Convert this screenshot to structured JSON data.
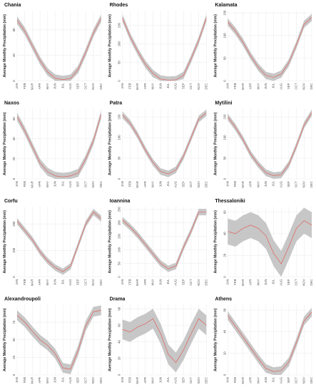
{
  "chart_data": [
    {
      "type": "line",
      "title": "Chania",
      "y_label": "Average Monthly Precipitation (mm)",
      "categories": [
        "JAN",
        "FEB",
        "MAR",
        "APR",
        "MAY",
        "JUN",
        "JUL",
        "AUG",
        "SEP",
        "OCT",
        "NOV",
        "DEC"
      ],
      "values": [
        95,
        78,
        55,
        32,
        14,
        4,
        2,
        4,
        18,
        45,
        75,
        98
      ],
      "lower": [
        89,
        72,
        49,
        26,
        8,
        0,
        0,
        0,
        12,
        39,
        69,
        92
      ],
      "upper": [
        101,
        84,
        61,
        38,
        20,
        10,
        8,
        10,
        24,
        51,
        81,
        104
      ],
      "color": "#e0605a",
      "band_color": "#bdbdbd",
      "ylim": [
        0,
        110
      ],
      "yticks": [
        0,
        40,
        80
      ],
      "grid": true
    },
    {
      "type": "line",
      "title": "Rhodes",
      "y_label": "Average Monthly Precipitation (mm)",
      "categories": [
        "JAN",
        "FEB",
        "MAR",
        "APR",
        "MAY",
        "JUN",
        "JUL",
        "AUG",
        "SEP",
        "OCT",
        "NOV",
        "DEC"
      ],
      "values": [
        170,
        120,
        80,
        45,
        20,
        5,
        2,
        3,
        15,
        60,
        110,
        170
      ],
      "lower": [
        160,
        110,
        70,
        35,
        10,
        0,
        0,
        0,
        5,
        50,
        100,
        160
      ],
      "upper": [
        180,
        130,
        90,
        55,
        30,
        15,
        12,
        13,
        25,
        70,
        120,
        180
      ],
      "color": "#e0605a",
      "band_color": "#bdbdbd",
      "ylim": [
        0,
        190
      ],
      "yticks": [
        0,
        50,
        100,
        150
      ],
      "grid": true
    },
    {
      "type": "line",
      "title": "Kalamata",
      "y_label": "Average Monthly Precipitation (mm)",
      "categories": [
        "JAN",
        "FEB",
        "MAR",
        "APR",
        "MAY",
        "JUN",
        "JUL",
        "AUG",
        "SEP",
        "OCT",
        "NOV",
        "DEC"
      ],
      "values": [
        130,
        110,
        85,
        55,
        30,
        12,
        8,
        15,
        40,
        80,
        125,
        140
      ],
      "lower": [
        122,
        102,
        77,
        47,
        22,
        4,
        0,
        7,
        32,
        72,
        117,
        132
      ],
      "upper": [
        138,
        118,
        93,
        63,
        38,
        20,
        16,
        23,
        48,
        88,
        133,
        148
      ],
      "color": "#e0605a",
      "band_color": "#bdbdbd",
      "ylim": [
        0,
        155
      ],
      "yticks": [
        0,
        50,
        100,
        150
      ],
      "grid": true
    },
    {
      "type": "line",
      "title": "Naxos",
      "y_label": "Average Monthly Precipitation (mm)",
      "categories": [
        "JAN",
        "FEB",
        "MAR",
        "APR",
        "MAY",
        "JUN",
        "JUL",
        "AUG",
        "SEP",
        "OCT",
        "NOV",
        "DEC"
      ],
      "values": [
        62,
        48,
        32,
        16,
        7,
        3,
        2,
        3,
        6,
        20,
        38,
        64
      ],
      "lower": [
        58,
        44,
        28,
        12,
        3,
        0,
        0,
        0,
        2,
        16,
        34,
        60
      ],
      "upper": [
        66,
        52,
        36,
        20,
        11,
        7,
        6,
        7,
        10,
        24,
        42,
        68
      ],
      "color": "#e0605a",
      "band_color": "#bdbdbd",
      "ylim": [
        0,
        70
      ],
      "yticks": [
        0,
        20,
        40,
        60
      ],
      "grid": true
    },
    {
      "type": "line",
      "title": "Patra",
      "y_label": "Average Monthly Precipitation (mm)",
      "categories": [
        "JAN",
        "FEB",
        "MAR",
        "APR",
        "MAY",
        "JUN",
        "JUL",
        "AUG",
        "SEP",
        "OCT",
        "NOV",
        "DEC"
      ],
      "values": [
        155,
        135,
        105,
        70,
        40,
        18,
        12,
        22,
        55,
        100,
        145,
        160
      ],
      "lower": [
        147,
        127,
        97,
        62,
        32,
        10,
        4,
        14,
        47,
        92,
        137,
        152
      ],
      "upper": [
        163,
        143,
        113,
        78,
        48,
        26,
        20,
        30,
        63,
        108,
        153,
        168
      ],
      "color": "#e0605a",
      "band_color": "#bdbdbd",
      "ylim": [
        0,
        170
      ],
      "yticks": [
        0,
        50,
        100,
        150
      ],
      "grid": true
    },
    {
      "type": "line",
      "title": "Mytilini",
      "y_label": "Average Monthly Precipitation (mm)",
      "categories": [
        "JAN",
        "FEB",
        "MAR",
        "APR",
        "MAY",
        "JUN",
        "JUL",
        "AUG",
        "SEP",
        "OCT",
        "NOV",
        "DEC"
      ],
      "values": [
        150,
        125,
        95,
        60,
        35,
        15,
        8,
        10,
        35,
        80,
        130,
        160
      ],
      "lower": [
        142,
        117,
        87,
        52,
        27,
        7,
        0,
        2,
        27,
        72,
        122,
        152
      ],
      "upper": [
        158,
        133,
        103,
        68,
        43,
        23,
        16,
        18,
        43,
        88,
        138,
        168
      ],
      "color": "#e0605a",
      "band_color": "#bdbdbd",
      "ylim": [
        0,
        170
      ],
      "yticks": [
        0,
        50,
        100,
        150
      ],
      "grid": true
    },
    {
      "type": "line",
      "title": "Corfu",
      "y_label": "Average Monthly Precipitation (mm)",
      "categories": [
        "JAN",
        "FEB",
        "MAR",
        "APR",
        "MAY",
        "JUN",
        "JUL",
        "AUG",
        "SEP",
        "OCT",
        "NOV",
        "DEC"
      ],
      "values": [
        210,
        175,
        140,
        95,
        60,
        35,
        20,
        40,
        120,
        200,
        245,
        220
      ],
      "lower": [
        198,
        163,
        128,
        83,
        48,
        23,
        8,
        28,
        108,
        188,
        233,
        208
      ],
      "upper": [
        222,
        187,
        152,
        107,
        72,
        47,
        32,
        52,
        132,
        212,
        257,
        232
      ],
      "color": "#e0605a",
      "band_color": "#bdbdbd",
      "ylim": [
        0,
        265
      ],
      "yticks": [
        0,
        100,
        200
      ],
      "grid": true
    },
    {
      "type": "line",
      "title": "Ioannina",
      "y_label": "Average Monthly Precipitation (mm)",
      "categories": [
        "JAN",
        "FEB",
        "MAR",
        "APR",
        "MAY",
        "JUN",
        "JUL",
        "AUG",
        "SEP",
        "OCT",
        "NOV",
        "DEC"
      ],
      "values": [
        210,
        185,
        155,
        120,
        85,
        50,
        30,
        40,
        110,
        170,
        240,
        240
      ],
      "lower": [
        198,
        173,
        143,
        108,
        73,
        38,
        18,
        28,
        98,
        158,
        228,
        228
      ],
      "upper": [
        222,
        197,
        167,
        132,
        97,
        62,
        42,
        52,
        122,
        182,
        252,
        252
      ],
      "color": "#e0605a",
      "band_color": "#bdbdbd",
      "ylim": [
        0,
        260
      ],
      "yticks": [
        0,
        50,
        100,
        150,
        200,
        250
      ],
      "grid": true
    },
    {
      "type": "line",
      "title": "Thessaloniki",
      "y_label": "Average Monthly Precipitation (mm)",
      "categories": [
        "JAN",
        "FEB",
        "MAR",
        "APR",
        "MAY",
        "JUN",
        "JUL",
        "AUG",
        "SEP",
        "OCT",
        "NOV",
        "DEC"
      ],
      "values": [
        42,
        40,
        45,
        48,
        45,
        38,
        22,
        12,
        28,
        45,
        52,
        48
      ],
      "lower": [
        30,
        28,
        33,
        36,
        33,
        26,
        10,
        0,
        16,
        33,
        40,
        36
      ],
      "upper": [
        54,
        52,
        57,
        60,
        57,
        50,
        34,
        24,
        40,
        57,
        64,
        60
      ],
      "color": "#e0605a",
      "band_color": "#bdbdbd",
      "ylim": [
        0,
        65
      ],
      "yticks": [
        0,
        20,
        40,
        60
      ],
      "grid": true
    },
    {
      "type": "line",
      "title": "Alexandroupoli",
      "y_label": "Average Monthly Precipitation (mm)",
      "categories": [
        "JAN",
        "FEB",
        "MAR",
        "APR",
        "MAY",
        "JUN",
        "JUL",
        "AUG",
        "SEP",
        "OCT",
        "NOV",
        "DEC"
      ],
      "values": [
        85,
        75,
        62,
        50,
        42,
        30,
        10,
        8,
        35,
        70,
        90,
        92
      ],
      "lower": [
        78,
        68,
        55,
        43,
        35,
        23,
        3,
        1,
        28,
        63,
        83,
        85
      ],
      "upper": [
        92,
        82,
        69,
        57,
        49,
        37,
        17,
        15,
        42,
        77,
        97,
        99
      ],
      "color": "#e0605a",
      "band_color": "#bdbdbd",
      "ylim": [
        0,
        100
      ],
      "yticks": [
        0,
        25,
        50,
        75
      ],
      "grid": true
    },
    {
      "type": "line",
      "title": "Drama",
      "y_label": "Average Monthly Precipitation (mm)",
      "categories": [
        "JAN",
        "FEB",
        "MAR",
        "APR",
        "MAY",
        "JUN",
        "JUL",
        "AUG",
        "SEP",
        "OCT",
        "NOV",
        "DEC"
      ],
      "values": [
        55,
        52,
        58,
        62,
        68,
        50,
        25,
        15,
        30,
        50,
        68,
        60
      ],
      "lower": [
        43,
        40,
        46,
        50,
        56,
        38,
        13,
        3,
        18,
        38,
        56,
        48
      ],
      "upper": [
        67,
        64,
        70,
        74,
        80,
        62,
        37,
        27,
        42,
        62,
        80,
        72
      ],
      "color": "#e0605a",
      "band_color": "#bdbdbd",
      "ylim": [
        0,
        85
      ],
      "yticks": [
        0,
        20,
        40,
        60,
        80
      ],
      "grid": true
    },
    {
      "type": "line",
      "title": "Athens",
      "y_label": "Average Monthly Precipitation (mm)",
      "categories": [
        "JAN",
        "FEB",
        "MAR",
        "APR",
        "MAY",
        "JUN",
        "JUL",
        "AUG",
        "SEP",
        "OCT",
        "NOV",
        "DEC"
      ],
      "values": [
        55,
        45,
        35,
        25,
        15,
        6,
        3,
        4,
        12,
        30,
        50,
        58
      ],
      "lower": [
        51,
        41,
        31,
        21,
        11,
        2,
        0,
        0,
        8,
        26,
        46,
        54
      ],
      "upper": [
        59,
        49,
        39,
        29,
        19,
        10,
        7,
        8,
        16,
        34,
        54,
        62
      ],
      "color": "#e0605a",
      "band_color": "#bdbdbd",
      "ylim": [
        0,
        65
      ],
      "yticks": [
        0,
        20,
        40,
        60
      ],
      "grid": true
    }
  ]
}
